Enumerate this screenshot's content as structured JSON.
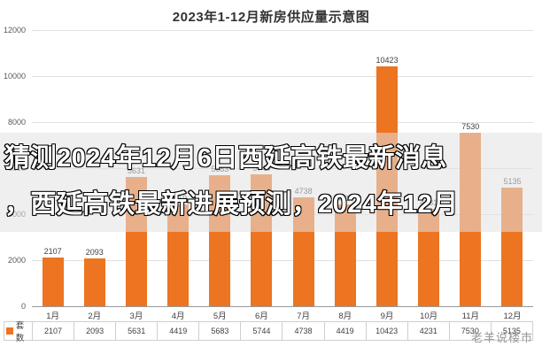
{
  "title": "2023年1-12月新房供应量示意图",
  "legend_label": "套数",
  "watermark": "老羊说楼市",
  "overlay": {
    "line1": "猜测2024年12月6日西延高铁最新消息",
    "line2": "，西延高铁最新进展预测，2024年12月"
  },
  "chart_data": {
    "type": "bar",
    "title": "2023年1-12月新房供应量示意图",
    "categories": [
      "1月",
      "2月",
      "3月",
      "4月",
      "5月",
      "6月",
      "7月",
      "8月",
      "9月",
      "10月",
      "11月",
      "12月"
    ],
    "series": [
      {
        "name": "套数",
        "values": [
          2107,
          2093,
          5631,
          4419,
          5683,
          5744,
          4738,
          4419,
          10423,
          4231,
          7530,
          5135
        ]
      }
    ],
    "ylabel": "",
    "xlabel": "",
    "ylim": [
      0,
      12000
    ],
    "yticks": [
      0,
      2000,
      4000,
      6000,
      8000,
      10000,
      12000
    ],
    "grid": true,
    "bar_color": "#ED7420",
    "legend_position": "bottom-table"
  }
}
